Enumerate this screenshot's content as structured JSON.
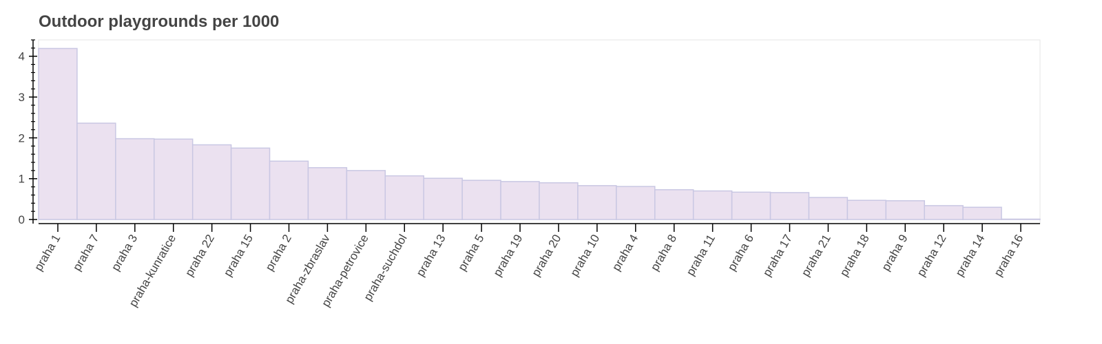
{
  "chart_data": {
    "type": "bar",
    "title": "Outdoor playgrounds per 1000",
    "xlabel": "",
    "ylabel": "",
    "ylim": [
      -0.1,
      4.4
    ],
    "yticks": [
      0,
      1,
      2,
      3,
      4
    ],
    "grid": false,
    "categories": [
      "praha 1",
      "praha 7",
      "praha 3",
      "praha-kunratice",
      "praha 22",
      "praha 15",
      "praha 2",
      "praha-zbraslav",
      "praha-petrovice",
      "praha-suchdol",
      "praha 13",
      "praha 5",
      "praha 19",
      "praha 20",
      "praha 10",
      "praha 4",
      "praha 8",
      "praha 11",
      "praha 6",
      "praha 17",
      "praha 21",
      "praha 18",
      "praha 9",
      "praha 12",
      "praha 14",
      "praha 16"
    ],
    "values": [
      4.19,
      2.36,
      1.98,
      1.97,
      1.83,
      1.75,
      1.43,
      1.27,
      1.2,
      1.07,
      1.01,
      0.96,
      0.93,
      0.9,
      0.83,
      0.81,
      0.73,
      0.7,
      0.67,
      0.66,
      0.54,
      0.47,
      0.46,
      0.34,
      0.3,
      0.01
    ],
    "colors": {
      "bar_fill": "#ebe1f0",
      "bar_stroke": "#c9c7e3",
      "axis": "#000000",
      "frame": "#e5e5e5",
      "text": "#444444"
    }
  }
}
